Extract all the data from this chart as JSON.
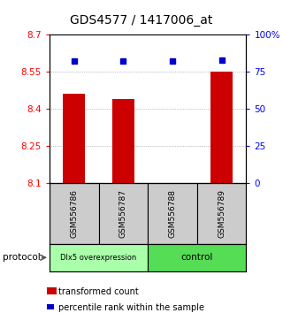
{
  "title": "GDS4577 / 1417006_at",
  "samples": [
    "GSM556786",
    "GSM556787",
    "GSM556788",
    "GSM556789"
  ],
  "bar_values": [
    8.46,
    8.44,
    8.1,
    8.55
  ],
  "dot_values": [
    82,
    82,
    82,
    83
  ],
  "ylim_left": [
    8.1,
    8.7
  ],
  "ylim_right": [
    0,
    100
  ],
  "yticks_left": [
    8.1,
    8.25,
    8.4,
    8.55,
    8.7
  ],
  "ytick_labels_left": [
    "8.1",
    "8.25",
    "8.4",
    "8.55",
    "8.7"
  ],
  "yticks_right": [
    0,
    25,
    50,
    75,
    100
  ],
  "ytick_labels_right": [
    "0",
    "25",
    "50",
    "75",
    "100%"
  ],
  "bar_color": "#cc0000",
  "dot_color": "#0000cc",
  "bar_bottom": 8.1,
  "groups": [
    {
      "label": "Dlx5 overexpression",
      "samples": [
        0,
        1
      ],
      "color": "#aaffaa"
    },
    {
      "label": "control",
      "samples": [
        2,
        3
      ],
      "color": "#55dd55"
    }
  ],
  "protocol_label": "protocol",
  "legend_bar_label": "transformed count",
  "legend_dot_label": "percentile rank within the sample",
  "grid_color": "#888888",
  "sample_box_color": "#cccccc",
  "title_fontsize": 10,
  "tick_fontsize": 7.5,
  "label_fontsize": 7.5
}
